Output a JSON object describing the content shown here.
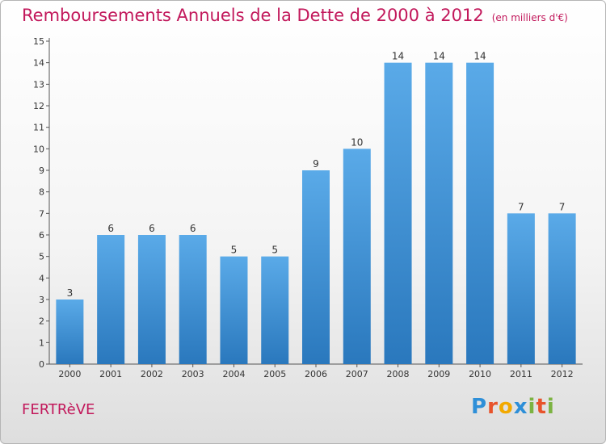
{
  "header": {
    "title": "Remboursements Annuels de la Dette de 2000 à 2012",
    "subtitle": "(en milliers d'€)"
  },
  "footer": {
    "commune": "FERTRèVE",
    "logo_letters": [
      "P",
      "r",
      "o",
      "x",
      "i",
      "t",
      "i"
    ],
    "logo_colors": [
      "#2e8fd8",
      "#e8532b",
      "#f2a900",
      "#2e8fd8",
      "#7cb342",
      "#e8532b",
      "#7cb342"
    ]
  },
  "colors": {
    "bar_top": "#5aaae8",
    "bar_bottom": "#2a78bd",
    "title": "#c2185b"
  },
  "chart_data": {
    "type": "bar",
    "categories": [
      "2000",
      "2001",
      "2002",
      "2003",
      "2004",
      "2005",
      "2006",
      "2007",
      "2008",
      "2009",
      "2010",
      "2011",
      "2012"
    ],
    "values": [
      3,
      6,
      6,
      6,
      5,
      5,
      9,
      10,
      14,
      14,
      14,
      7,
      7
    ],
    "data_labels": [
      "3",
      "6",
      "6",
      "6",
      "5",
      "5",
      "9",
      "10",
      "14",
      "14",
      "14",
      "7",
      "7"
    ],
    "ylim": [
      0,
      15
    ],
    "yticks": [
      0,
      1,
      2,
      3,
      4,
      5,
      6,
      7,
      8,
      9,
      10,
      11,
      12,
      13,
      14,
      15
    ],
    "ytick_labels": [
      "0",
      "1",
      "2",
      "3",
      "4",
      "5",
      "6",
      "7",
      "8",
      "9",
      "10",
      "11",
      "12",
      "13",
      "14",
      "15"
    ],
    "grid": false,
    "legend": "none"
  }
}
